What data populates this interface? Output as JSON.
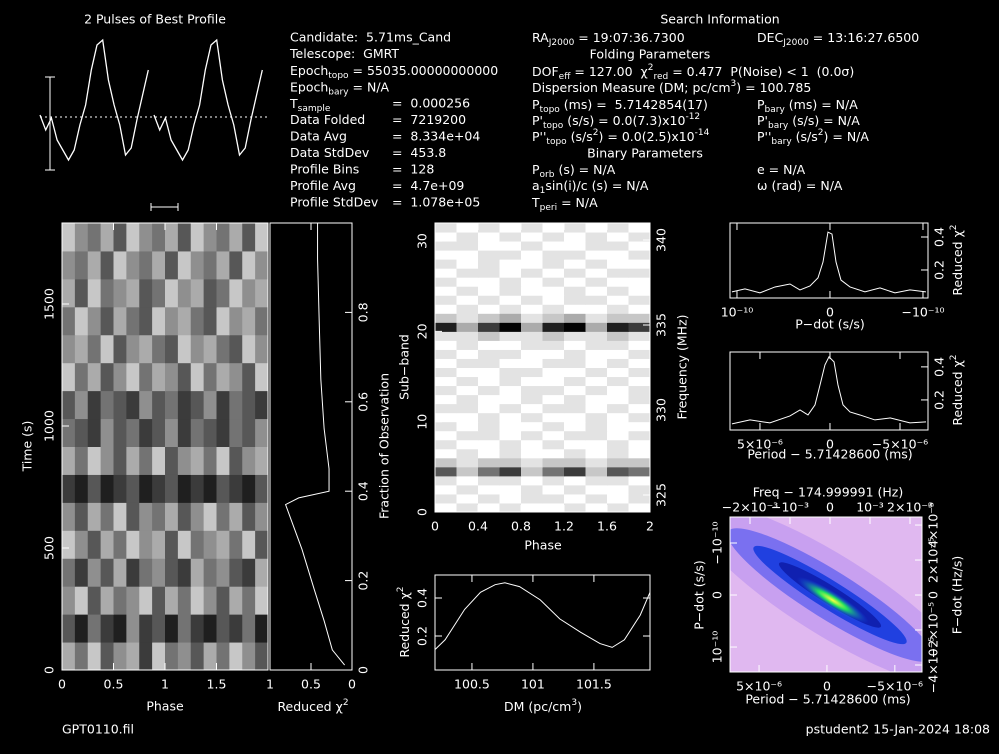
{
  "info": [
    [
      "Candidate:  5.71ms_Cand"
    ],
    [
      "Telescope:  GMRT"
    ],
    [
      [
        "Epoch",
        {
          "sub": "topo"
        },
        " = 55035.00000000000"
      ]
    ],
    [
      [
        "Epoch",
        {
          "sub": "bary"
        },
        " = N/A"
      ]
    ],
    [
      [
        "T",
        {
          "sub": "sample"
        }
      ],
      "=  0.000256"
    ],
    [
      "Data Folded",
      "=  7219200"
    ],
    [
      "Data Avg",
      "=  8.334e+04"
    ],
    [
      "Data StdDev",
      "=  453.8"
    ],
    [
      "Profile Bins",
      "=  128"
    ],
    [
      "Profile Avg",
      "=  4.7e+09"
    ],
    [
      "Profile StdDev",
      "=  1.078e+05"
    ]
  ],
  "search_info": {
    "title": "Search Information",
    "ra": [
      "RA",
      {
        "sub": "J2000"
      },
      " = 19:07:36.7300"
    ],
    "dec": [
      "DEC",
      {
        "sub": "J2000"
      },
      " = 13:16:27.6500"
    ],
    "folding_title": "Folding Parameters",
    "folding": [
      [
        [
          "DOF",
          {
            "sub": "eff"
          },
          " = 127.00  χ",
          {
            "sup": "2"
          },
          {
            "sub": "red"
          },
          " = 0.477  P(Noise) < 1  (0.0σ)"
        ]
      ],
      [
        [
          "Dispersion Measure (DM; pc/cm",
          {
            "sup": "3"
          },
          ") = 100.785"
        ]
      ],
      [
        [
          "P",
          {
            "sub": "topo"
          },
          " (ms) =  5.7142854(17)"
        ],
        [
          "P",
          {
            "sub": "bary"
          },
          " (ms) = N/A"
        ]
      ],
      [
        [
          "P'",
          {
            "sub": "topo"
          },
          " (s/s) = 0.0(7.3)x10",
          {
            "sup": "-12"
          }
        ],
        [
          "P'",
          {
            "sub": "bary"
          },
          " (s/s) = N/A"
        ]
      ],
      [
        [
          "P''",
          {
            "sub": "topo"
          },
          " (s/s",
          {
            "sup": "2"
          },
          ") = 0.0(2.5)x10",
          {
            "sup": "-14"
          }
        ],
        [
          "P''",
          {
            "sub": "bary"
          },
          " (s/s",
          {
            "sup": "2"
          },
          ") = N/A"
        ]
      ]
    ],
    "binary_title": "Binary Parameters",
    "binary": [
      [
        [
          "P",
          {
            "sub": "orb"
          },
          " (s) = N/A"
        ],
        [
          "e = N/A"
        ]
      ],
      [
        [
          "a",
          {
            "sub": "1"
          },
          "sin(i)/c (s) = N/A"
        ],
        [
          "ω (rad) = N/A"
        ]
      ],
      [
        [
          "T",
          {
            "sub": "peri"
          },
          " = N/A"
        ]
      ]
    ]
  },
  "footer_left": "GPT0110.fil",
  "footer_right": "pstudent2 15-Jan-2024 18:08",
  "chart_data": [
    {
      "type": "profile",
      "title": "2 Pulses of Best Profile",
      "color": "#ffffff",
      "xlim": [
        0,
        2
      ],
      "ylim": [
        -5.8,
        8.7
      ],
      "x": [
        0,
        0.05,
        0.1,
        0.15,
        0.2,
        0.25,
        0.3,
        0.35,
        0.4,
        0.45,
        0.5,
        0.55,
        0.6,
        0.65,
        0.7,
        0.75,
        0.8,
        0.85,
        0.9,
        0.95
      ],
      "values": [
        0.2,
        -1.3,
        -0.1,
        -2.3,
        -3.3,
        -4.3,
        -3.3,
        -0.8,
        1.2,
        4.7,
        7.2,
        7.7,
        3.7,
        1.2,
        -0.8,
        -3.8,
        -3.1,
        -0.3,
        2.2,
        4.7
      ]
    },
    {
      "type": "heatmap",
      "xlabel": "Phase",
      "ylabel": "Time (s)",
      "xlim": [
        0,
        2
      ],
      "xticks": [
        0,
        0.5,
        1,
        1.5
      ],
      "ylim": [
        0,
        1832
      ],
      "yticks": [
        0,
        500,
        1000,
        1500
      ],
      "values": [
        [
          3,
          5,
          2,
          6,
          4,
          3,
          7,
          2,
          5,
          4,
          6,
          3,
          5,
          2,
          4,
          6
        ],
        [
          6,
          8,
          5,
          7,
          8,
          4,
          7,
          6,
          8,
          5,
          7,
          8,
          6,
          7,
          5,
          8
        ],
        [
          4,
          2,
          6,
          3,
          5,
          4,
          2,
          6,
          3,
          5,
          2,
          4,
          6,
          3,
          5,
          2
        ],
        [
          5,
          7,
          4,
          6,
          3,
          7,
          5,
          4,
          6,
          7,
          3,
          5,
          4,
          6,
          7,
          3
        ],
        [
          2,
          4,
          6,
          3,
          5,
          2,
          4,
          3,
          6,
          2,
          5,
          4,
          3,
          5,
          2,
          6
        ],
        [
          4,
          6,
          3,
          5,
          2,
          6,
          4,
          5,
          3,
          6,
          4,
          2,
          5,
          3,
          6,
          4
        ],
        [
          7,
          8,
          6,
          8,
          7,
          6,
          8,
          7,
          6,
          8,
          7,
          8,
          6,
          7,
          8,
          6
        ],
        [
          3,
          5,
          2,
          4,
          6,
          3,
          5,
          2,
          6,
          4,
          3,
          5,
          2,
          6,
          4,
          3
        ],
        [
          5,
          6,
          7,
          4,
          6,
          5,
          7,
          6,
          4,
          7,
          5,
          6,
          7,
          5,
          6,
          4
        ],
        [
          6,
          4,
          7,
          5,
          6,
          7,
          4,
          6,
          5,
          7,
          6,
          4,
          7,
          5,
          6,
          7
        ],
        [
          2,
          5,
          3,
          6,
          4,
          2,
          5,
          3,
          4,
          6,
          2,
          5,
          3,
          4,
          6,
          2
        ],
        [
          4,
          3,
          5,
          2,
          6,
          4,
          3,
          5,
          6,
          2,
          4,
          3,
          5,
          6,
          2,
          4
        ],
        [
          5,
          2,
          4,
          6,
          3,
          5,
          6,
          2,
          4,
          3,
          5,
          6,
          2,
          4,
          3,
          5
        ],
        [
          3,
          6,
          2,
          5,
          4,
          3,
          6,
          5,
          2,
          4,
          3,
          6,
          5,
          2,
          4,
          3
        ],
        [
          4,
          5,
          3,
          6,
          2,
          4,
          5,
          3,
          6,
          2,
          4,
          5,
          3,
          6,
          2,
          4
        ],
        [
          2,
          4,
          5,
          3,
          6,
          2,
          4,
          5,
          3,
          6,
          2,
          4,
          5,
          3,
          6,
          2
        ]
      ]
    },
    {
      "type": "line",
      "xlabel": [
        "Reduced χ",
        {
          "sup": "2"
        }
      ],
      "y2label": "Fraction of Observation",
      "color": "#ffffff",
      "xlim": [
        1,
        0
      ],
      "xticks": [
        1,
        0.5,
        0
      ],
      "y2lim": [
        0,
        1
      ],
      "y2ticks": [
        0,
        0.2,
        0.4,
        0.6,
        0.8
      ],
      "y": [
        0.011,
        0.045,
        0.11,
        0.18,
        0.27,
        0.34,
        0.37,
        0.385,
        0.4,
        0.45,
        0.54,
        0.65,
        0.78,
        0.92,
        1
      ],
      "values": [
        0.09,
        0.24,
        0.34,
        0.46,
        0.61,
        0.75,
        0.81,
        0.65,
        0.28,
        0.28,
        0.34,
        0.38,
        0.4,
        0.42,
        0.42
      ]
    },
    {
      "type": "heatmap",
      "xlabel": "Phase",
      "ylabel": "Sub−band",
      "y2label": "Frequency (MHz)",
      "xlim": [
        0,
        2
      ],
      "xticks": [
        0,
        0.4,
        0.8,
        1.2,
        1.6,
        2
      ],
      "ylim": [
        0,
        32
      ],
      "yticks": [
        0,
        10,
        20,
        30
      ],
      "y2lim": [
        324,
        341
      ],
      "y2ticks": [
        325,
        330,
        335,
        340
      ],
      "values": [
        [
          0,
          1,
          0,
          1,
          0,
          0,
          1,
          0,
          1,
          0
        ],
        [
          1,
          0,
          1,
          0,
          1,
          1,
          0,
          1,
          0,
          1
        ],
        [
          0,
          1,
          0,
          0,
          1,
          0,
          1,
          0,
          0,
          1
        ],
        [
          1,
          0,
          1,
          1,
          0,
          1,
          0,
          1,
          1,
          0
        ],
        [
          6,
          2,
          5,
          7,
          2,
          5,
          7,
          2,
          6,
          5
        ],
        [
          2,
          1,
          2,
          2,
          1,
          2,
          2,
          1,
          2,
          2
        ],
        [
          0,
          1,
          0,
          1,
          0,
          0,
          1,
          0,
          1,
          0
        ],
        [
          1,
          0,
          0,
          1,
          0,
          1,
          0,
          0,
          1,
          0
        ],
        [
          0,
          1,
          1,
          0,
          1,
          0,
          1,
          1,
          0,
          1
        ],
        [
          1,
          0,
          1,
          0,
          0,
          1,
          0,
          1,
          0,
          0
        ],
        [
          0,
          0,
          1,
          0,
          1,
          0,
          0,
          1,
          0,
          1
        ],
        [
          1,
          1,
          0,
          1,
          0,
          1,
          1,
          0,
          1,
          0
        ],
        [
          0,
          1,
          0,
          0,
          1,
          0,
          1,
          0,
          0,
          1
        ],
        [
          1,
          0,
          1,
          0,
          1,
          1,
          0,
          1,
          0,
          1
        ],
        [
          0,
          1,
          0,
          1,
          0,
          0,
          1,
          0,
          1,
          0
        ],
        [
          1,
          0,
          0,
          1,
          1,
          0,
          0,
          1,
          0,
          1
        ],
        [
          0,
          1,
          1,
          0,
          0,
          1,
          1,
          0,
          1,
          0
        ],
        [
          1,
          0,
          1,
          1,
          0,
          0,
          1,
          0,
          0,
          1
        ],
        [
          0,
          1,
          0,
          0,
          1,
          1,
          0,
          1,
          1,
          0
        ],
        [
          1,
          1,
          2,
          1,
          1,
          2,
          1,
          1,
          2,
          1
        ],
        [
          8,
          3,
          7,
          9,
          3,
          8,
          9,
          3,
          8,
          7
        ],
        [
          2,
          1,
          2,
          3,
          1,
          2,
          3,
          1,
          2,
          2
        ],
        [
          0,
          1,
          0,
          1,
          0,
          1,
          0,
          0,
          1,
          0
        ],
        [
          1,
          0,
          1,
          0,
          1,
          0,
          1,
          1,
          0,
          1
        ],
        [
          0,
          1,
          0,
          1,
          0,
          0,
          1,
          0,
          1,
          0
        ],
        [
          1,
          0,
          0,
          1,
          0,
          1,
          0,
          1,
          0,
          0
        ],
        [
          0,
          1,
          1,
          0,
          1,
          0,
          1,
          0,
          1,
          1
        ],
        [
          1,
          0,
          1,
          0,
          0,
          1,
          0,
          1,
          0,
          0
        ],
        [
          0,
          0,
          1,
          1,
          0,
          1,
          1,
          0,
          0,
          1
        ],
        [
          1,
          1,
          0,
          0,
          1,
          0,
          0,
          1,
          1,
          0
        ],
        [
          0,
          1,
          0,
          1,
          0,
          1,
          0,
          1,
          0,
          1
        ],
        [
          1,
          0,
          1,
          0,
          1,
          0,
          1,
          0,
          1,
          0
        ]
      ]
    },
    {
      "type": "line",
      "xlabel": [
        "DM (pc/cm",
        {
          "sup": "3"
        },
        ")"
      ],
      "ylabel": [
        "Reduced χ",
        {
          "sup": "2"
        }
      ],
      "color": "#ffffff",
      "xlim": [
        100.197,
        101.96
      ],
      "xticks": [
        100.5,
        101,
        101.5
      ],
      "ylim": [
        0.021,
        0.521
      ],
      "yticks": [
        0.2,
        0.4
      ],
      "x": [
        100.2,
        100.28,
        100.36,
        100.44,
        100.57,
        100.69,
        100.77,
        100.89,
        101.06,
        101.22,
        101.39,
        101.55,
        101.65,
        101.75,
        101.88,
        101.96
      ],
      "values": [
        0.13,
        0.18,
        0.26,
        0.34,
        0.43,
        0.47,
        0.48,
        0.46,
        0.39,
        0.29,
        0.22,
        0.16,
        0.14,
        0.18,
        0.31,
        0.43
      ]
    },
    {
      "type": "line",
      "xlabel": "P−dot (s/s)",
      "y2label": [
        "Reduced χ",
        {
          "sup": "2"
        }
      ],
      "color": "#ffffff",
      "xlim": [
        1.075e-10,
        -1.054e-10
      ],
      "xticks": [
        {
          "value": 1e-10,
          "label": "10⁻¹⁰"
        },
        0,
        {
          "value": -1e-10,
          "label": "−10⁻¹⁰"
        }
      ],
      "y2lim": [
        0.03,
        0.485
      ],
      "y2ticks": [
        0.2,
        0.4
      ],
      "x": [
        1.054e-10,
        9.14e-11,
        7.53e-11,
        5.91e-11,
        4.3e-11,
        3.23e-11,
        2.15e-11,
        1.29e-11,
        7.5e-12,
        2.15e-12,
        -2.15e-12,
        -6.5e-12,
        -1.18e-11,
        -2.15e-11,
        -3.76e-11,
        -5.38e-11,
        -6.99e-11,
        -8.6e-11,
        -1.032e-10
      ],
      "values": [
        0.067,
        0.085,
        0.061,
        0.097,
        0.115,
        0.079,
        0.103,
        0.152,
        0.248,
        0.43,
        0.418,
        0.248,
        0.139,
        0.097,
        0.067,
        0.091,
        0.061,
        0.079,
        0.067
      ]
    },
    {
      "type": "line",
      "xlabel": "Period − 5.71428600 (ms)",
      "y2label": [
        "Reduced χ",
        {
          "sup": "2"
        }
      ],
      "color": "#ffffff",
      "xlim": [
        7.14e-06,
        -7e-06
      ],
      "xticks": [
        {
          "value": 5e-06,
          "label": "5×10⁻⁶"
        },
        0,
        {
          "value": -5e-06,
          "label": "−5×10⁻⁶"
        }
      ],
      "y2lim": [
        0.018,
        0.49
      ],
      "y2ticks": [
        0.2,
        0.4
      ],
      "x": [
        7e-06,
        5.71e-06,
        4.29e-06,
        2.86e-06,
        2.14e-06,
        1.57e-06,
        1.07e-06,
        7.1e-07,
        3.6e-07,
        7e-08,
        -2.9e-07,
        -5.7e-07,
        -9.3e-07,
        -1.43e-06,
        -2.14e-06,
        -3.21e-06,
        -4.29e-06,
        -5.71e-06,
        -6.86e-06
      ],
      "values": [
        0.055,
        0.079,
        0.061,
        0.103,
        0.139,
        0.109,
        0.17,
        0.291,
        0.412,
        0.461,
        0.43,
        0.291,
        0.17,
        0.127,
        0.109,
        0.079,
        0.091,
        0.061,
        0.067
      ]
    },
    {
      "type": "map",
      "title": "Freq − 174.999991 (Hz)",
      "xlabel": "Period − 5.71428600 (ms)",
      "ylabel": "P−dot (s/s)",
      "y2label": "F−dot (Hz/s)",
      "xlim": [
        7.14e-06,
        -7e-06
      ],
      "xticks": [
        {
          "value": 5e-06,
          "label": "5×10⁻⁶"
        },
        0,
        {
          "value": -5e-06,
          "label": "−5×10⁻⁶"
        }
      ],
      "x2lim": [
        -0.0025,
        0.0023
      ],
      "x2ticks": [
        {
          "value": -0.002,
          "label": "−2×10⁻³"
        },
        {
          "value": -0.001,
          "label": "−10⁻³"
        },
        0,
        {
          "value": 0.001,
          "label": "10⁻³"
        },
        {
          "value": 0.002,
          "label": "2×10⁻³"
        }
      ],
      "ylim": [
        1.48e-10,
        -1.5e-10
      ],
      "yticks": [
        {
          "value": 1e-10,
          "label": "10⁻¹⁰"
        },
        0,
        {
          "value": -1e-10,
          "label": "−10⁻¹⁰"
        }
      ],
      "y2lim": [
        -4.4e-05,
        4.46e-05
      ],
      "y2ticks": [
        {
          "value": -4e-05,
          "label": "−4×10⁻⁵"
        },
        {
          "value": -2e-05,
          "label": "−2×10⁻⁵"
        },
        0,
        {
          "value": 2e-05,
          "label": "2×10⁻⁵"
        },
        {
          "value": 4e-05,
          "label": "4×10⁻⁵"
        }
      ]
    }
  ]
}
